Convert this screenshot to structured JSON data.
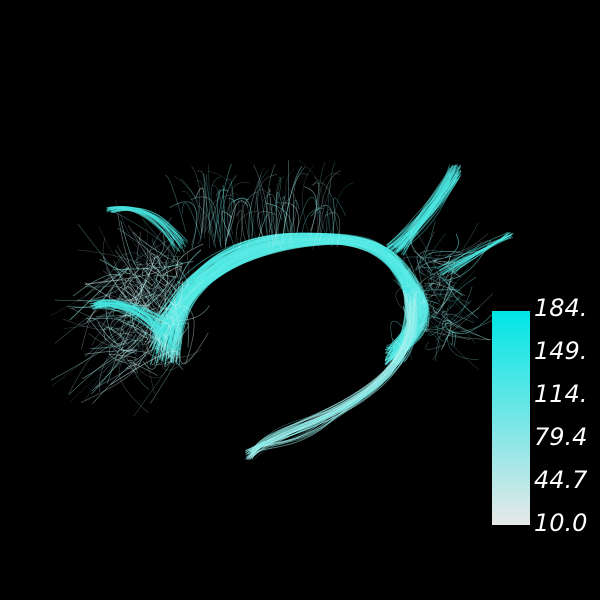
{
  "colorbar": {
    "ticks": [
      "184.",
      "149.",
      "114.",
      "79.4",
      "44.7",
      "10.0"
    ],
    "high_color": "#00e5e5",
    "low_color": "#e8e8e8"
  },
  "scene": {
    "background": "#000000",
    "fiber_color_high": "#40e8e2",
    "fiber_color_low": "#e6f6f6"
  }
}
